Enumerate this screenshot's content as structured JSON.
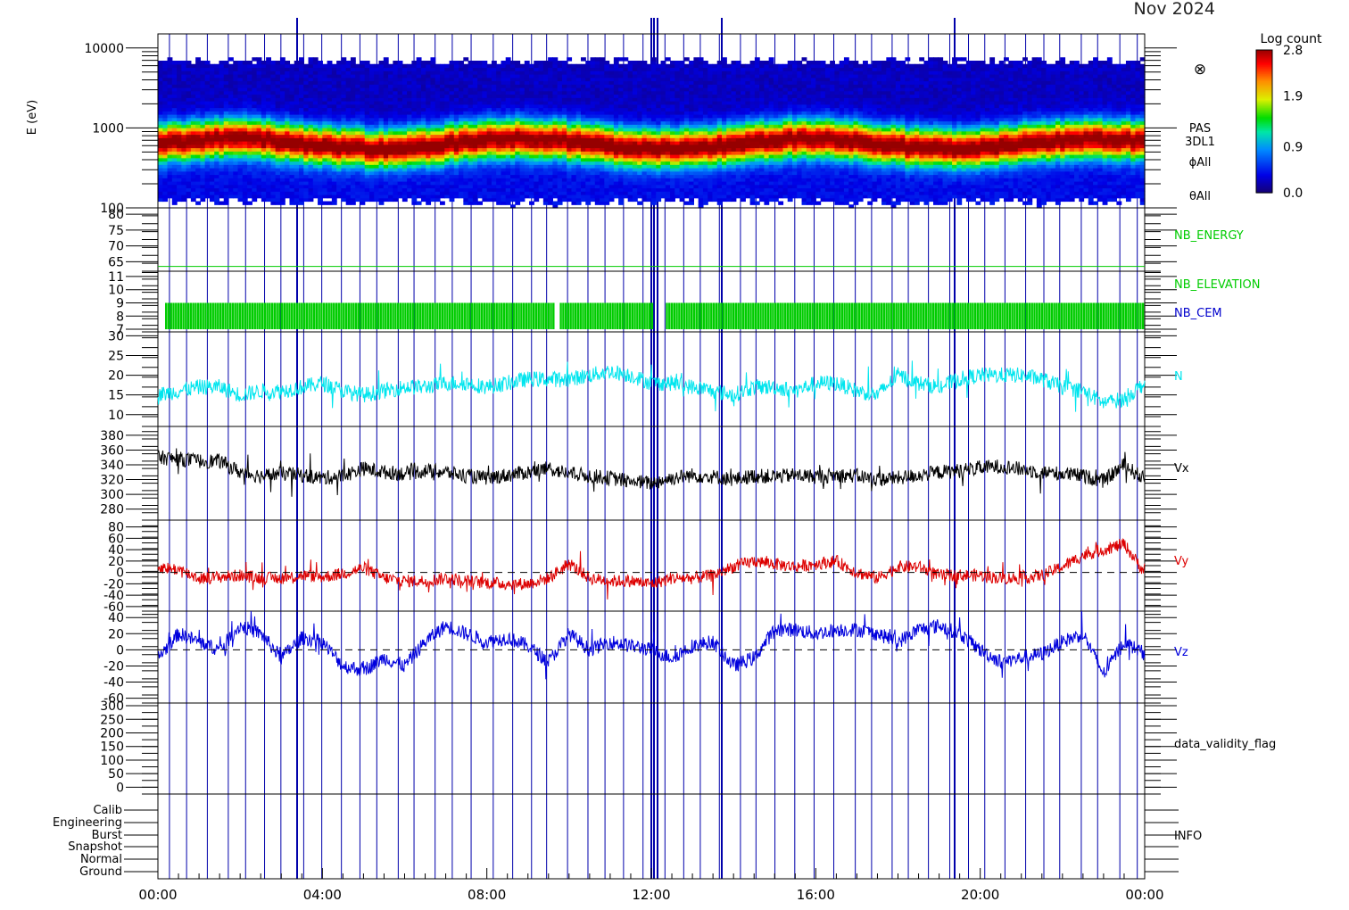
{
  "header": {
    "date_label": "Nov 2024"
  },
  "colors": {
    "frame": "#000000",
    "marker_lines": "#0000aa",
    "green": "#00cc00",
    "nb_cem": "#0000cc",
    "N": "#00e5ee",
    "Vx": "#000000",
    "Vy": "#dd0000",
    "Vz": "#0000dd"
  },
  "chart_data": {
    "type": "line",
    "x_axis": {
      "ticks": [
        "00:00",
        "04:00",
        "08:00",
        "12:00",
        "16:00",
        "20:00",
        "00:00"
      ],
      "range_hours": [
        0,
        24
      ]
    },
    "colorbar": {
      "title": "Log count",
      "ticks": [
        "2.8",
        "1.9",
        "0.9",
        "0.0"
      ],
      "range": [
        0.0,
        2.8
      ]
    },
    "panels": [
      {
        "id": "pas",
        "type": "heatmap",
        "ylabel": "E (eV)",
        "yscale": "log",
        "ylim": [
          100,
          15000
        ],
        "ytick_labels": [
          "10000",
          "1000",
          "100"
        ],
        "ytick_values": [
          10000,
          1000,
          100
        ],
        "labels": [
          "PAS",
          "3DL1",
          "ϕAll",
          "θAll"
        ],
        "symbol": "⊗",
        "peak_energy_ev": 650,
        "band_energy_ev": [
          120,
          7000
        ]
      },
      {
        "id": "nb_energy",
        "ylim": [
          62,
          82
        ],
        "ytick_labels": [
          "80",
          "75",
          "70",
          "65"
        ],
        "ytick_values": [
          80,
          75,
          70,
          65
        ],
        "series": [
          {
            "name": "NB_ENERGY",
            "constant": 63.5
          }
        ]
      },
      {
        "id": "nb_elev",
        "ylim": [
          6.8,
          11.4
        ],
        "ytick_labels": [
          "11",
          "10",
          "9",
          "8",
          "7"
        ],
        "ytick_values": [
          11,
          10,
          9,
          8,
          7
        ],
        "series": [
          {
            "name": "NB_ELEVATION",
            "range": [
              7,
              9
            ]
          },
          {
            "name": "NB_CEM"
          }
        ]
      },
      {
        "id": "N",
        "ylim": [
          7,
          31
        ],
        "ytick_labels": [
          "30",
          "25",
          "20",
          "15",
          "10"
        ],
        "ytick_values": [
          30,
          25,
          20,
          15,
          10
        ],
        "series": [
          {
            "name": "N",
            "x": [
              0,
              0.5,
              1,
              1.5,
              2,
              2.5,
              3,
              3.5,
              4,
              4.5,
              5,
              5.5,
              6,
              6.5,
              7,
              7.5,
              8,
              8.5,
              9,
              9.5,
              10,
              10.5,
              11,
              11.5,
              12,
              12.5,
              13,
              13.5,
              14,
              14.5,
              15,
              15.5,
              16,
              16.5,
              17,
              17.5,
              18,
              18.5,
              19,
              19.5,
              20,
              20.5,
              21,
              21.5,
              22,
              22.5,
              23,
              23.5,
              24
            ],
            "y": [
              15,
              16,
              17,
              17,
              15,
              16,
              16,
              17,
              18,
              16,
              15,
              16,
              17,
              17,
              18,
              18,
              17,
              18,
              19,
              19,
              19,
              20,
              21,
              20,
              18,
              18,
              17,
              16,
              15,
              17,
              17,
              16,
              18,
              18,
              16,
              15,
              20,
              18,
              17,
              19,
              20,
              20,
              20,
              19,
              17,
              16,
              13,
              14,
              18
            ]
          }
        ]
      },
      {
        "id": "Vx",
        "ylim": [
          265,
          392
        ],
        "ytick_labels": [
          "380",
          "360",
          "340",
          "320",
          "300",
          "280"
        ],
        "ytick_values": [
          380,
          360,
          340,
          320,
          300,
          280
        ],
        "series": [
          {
            "name": "Vx",
            "x": [
              0,
              0.5,
              1,
              1.5,
              2,
              2.5,
              3,
              3.5,
              4,
              4.5,
              5,
              5.5,
              6,
              6.5,
              7,
              7.5,
              8,
              8.5,
              9,
              9.5,
              10,
              10.5,
              11,
              11.5,
              12,
              12.5,
              13,
              13.5,
              14,
              14.5,
              15,
              15.5,
              16,
              16.5,
              17,
              17.5,
              18,
              18.5,
              19,
              19.5,
              20,
              20.5,
              21,
              21.5,
              22,
              22.5,
              23,
              23.5,
              24
            ],
            "y": [
              350,
              348,
              345,
              345,
              330,
              325,
              328,
              326,
              322,
              325,
              335,
              330,
              328,
              332,
              330,
              325,
              322,
              326,
              330,
              335,
              328,
              325,
              322,
              318,
              315,
              322,
              326,
              324,
              320,
              325,
              324,
              326,
              324,
              326,
              325,
              320,
              322,
              326,
              330,
              332,
              336,
              338,
              334,
              330,
              328,
              325,
              318,
              340,
              320
            ]
          }
        ]
      },
      {
        "id": "Vy",
        "ylim": [
          -68,
          92
        ],
        "ytick_labels": [
          "80",
          "60",
          "40",
          "20",
          "0",
          "-20",
          "-40",
          "-60"
        ],
        "ytick_values": [
          80,
          60,
          40,
          20,
          0,
          -20,
          -40,
          -60
        ],
        "series": [
          {
            "name": "Vy",
            "x": [
              0,
              0.5,
              1,
              1.5,
              2,
              2.5,
              3,
              3.5,
              4,
              4.5,
              5,
              5.5,
              6,
              6.5,
              7,
              7.5,
              8,
              8.5,
              9,
              9.5,
              10,
              10.5,
              11,
              11.5,
              12,
              12.5,
              13,
              13.5,
              14,
              14.5,
              15,
              15.5,
              16,
              16.5,
              17,
              17.5,
              18,
              18.5,
              19,
              19.5,
              20,
              20.5,
              21,
              21.5,
              22,
              22.5,
              23,
              23.5,
              24
            ],
            "y": [
              10,
              5,
              -10,
              -8,
              -5,
              -10,
              -10,
              -5,
              -8,
              -2,
              8,
              -10,
              -15,
              -15,
              -10,
              -15,
              -18,
              -20,
              -20,
              -10,
              15,
              -10,
              -15,
              -15,
              -20,
              -10,
              -10,
              -5,
              10,
              20,
              15,
              10,
              15,
              20,
              0,
              -10,
              10,
              10,
              -5,
              -5,
              -5,
              -10,
              -10,
              -5,
              10,
              30,
              40,
              50,
              0
            ]
          }
        ]
      },
      {
        "id": "Vz",
        "ylim": [
          -66,
          48
        ],
        "ytick_labels": [
          "40",
          "20",
          "0",
          "-20",
          "-40",
          "-60"
        ],
        "ytick_values": [
          40,
          20,
          0,
          -20,
          -40,
          -60
        ],
        "series": [
          {
            "name": "Vz",
            "x": [
              0,
              0.5,
              1,
              1.5,
              2,
              2.5,
              3,
              3.5,
              4,
              4.5,
              5,
              5.5,
              6,
              6.5,
              7,
              7.5,
              8,
              8.5,
              9,
              9.5,
              10,
              10.5,
              11,
              11.5,
              12,
              12.5,
              13,
              13.5,
              14,
              14.5,
              15,
              15.5,
              16,
              16.5,
              17,
              17.5,
              18,
              18.5,
              19,
              19.5,
              20,
              20.5,
              21,
              21.5,
              22,
              22.5,
              23,
              23.5,
              24
            ],
            "y": [
              -10,
              20,
              10,
              0,
              30,
              20,
              -10,
              15,
              10,
              -20,
              -25,
              -10,
              -20,
              10,
              30,
              20,
              10,
              15,
              5,
              -15,
              20,
              0,
              10,
              5,
              0,
              -10,
              5,
              10,
              -20,
              -10,
              25,
              25,
              20,
              25,
              25,
              20,
              10,
              25,
              30,
              20,
              0,
              -15,
              -10,
              -5,
              10,
              20,
              -30,
              10,
              -5
            ]
          }
        ]
      },
      {
        "id": "flag",
        "ylim": [
          -25,
          310
        ],
        "ytick_labels": [
          "300",
          "250",
          "200",
          "150",
          "100",
          "50",
          "0"
        ],
        "ytick_values": [
          300,
          250,
          200,
          150,
          100,
          50,
          0
        ],
        "labels": [
          "data_validity_flag"
        ]
      },
      {
        "id": "info",
        "ytick_labels": [
          "Calib",
          "Engineering",
          "Burst",
          "Snapshot",
          "Normal",
          "Ground"
        ],
        "labels": [
          "INFO"
        ]
      }
    ]
  }
}
